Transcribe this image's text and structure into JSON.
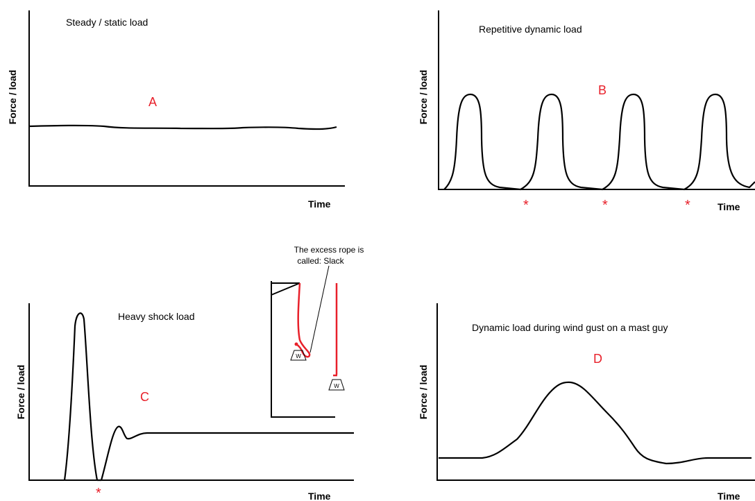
{
  "panels": [
    {
      "title": "Steady / static load",
      "letter": "A",
      "y_label": "Force / load",
      "x_label": "Time"
    },
    {
      "title": "Repetitive dynamic load",
      "letter": "B",
      "y_label": "Force / load",
      "x_label": "Time",
      "markers": [
        "*",
        "*",
        "*"
      ]
    },
    {
      "title": "Heavy shock load",
      "letter": "C",
      "y_label": "Force / load",
      "x_label": "Time",
      "markers": [
        "*"
      ]
    },
    {
      "title": "Dynamic load during wind gust on a mast guy",
      "letter": "D",
      "y_label": "Force / load",
      "x_label": "Time"
    }
  ],
  "inset": {
    "note_lines": [
      "The excess rope is",
      "called:  Slack"
    ],
    "weights": [
      "W",
      "W"
    ]
  }
}
